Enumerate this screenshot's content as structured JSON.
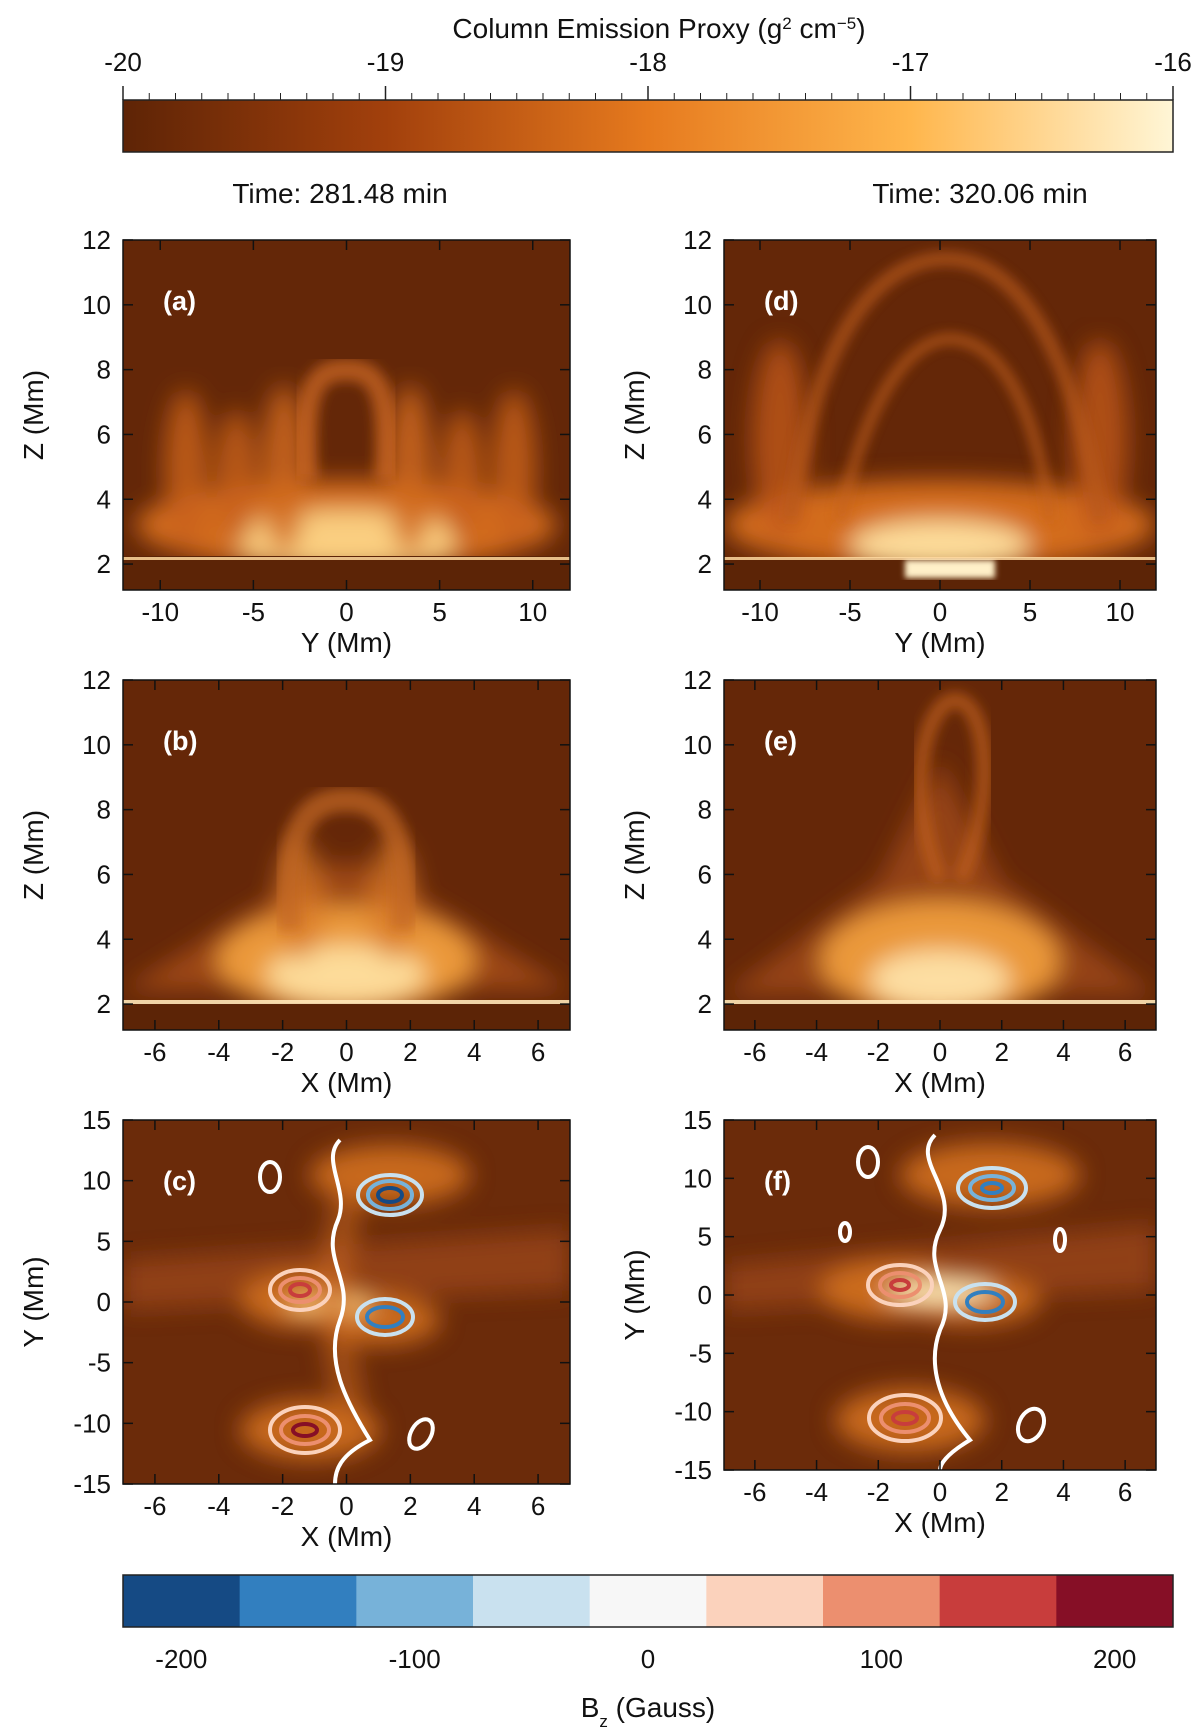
{
  "top_colorbar": {
    "title_main": "Column Emission Proxy (g",
    "title_sup1": "2",
    "title_mid": " cm",
    "title_sup2": "−5",
    "title_end": ")",
    "ticks": [
      "-20",
      "-19",
      "-18",
      "-17",
      "-16"
    ],
    "range": [
      -20,
      -16
    ],
    "colors": [
      "#5e2406",
      "#a2400c",
      "#e67a1e",
      "#ffb64c",
      "#fff6d6"
    ]
  },
  "bottom_colorbar": {
    "title_main": "B",
    "title_sub": "z",
    "title_end": " (Gauss)",
    "ticks": [
      "-200",
      "-100",
      "0",
      "100",
      "200"
    ],
    "bins": [
      "#154a84",
      "#327fbf",
      "#77b2d9",
      "#c9e1ef",
      "#f7f7f7",
      "#fbd2bc",
      "#ec8f6f",
      "#c83d3c",
      "#860f26"
    ]
  },
  "column_times": [
    "Time: 281.48 min",
    "Time: 320.06 min"
  ],
  "chart_data": [
    {
      "type": "heatmap",
      "panel": "(a)",
      "xlabel": "Y (Mm)",
      "ylabel": "Z (Mm)",
      "xlim": [
        -12,
        12
      ],
      "ylim": [
        1.2,
        12
      ],
      "xticks": [
        "-10",
        "-5",
        "0",
        "5",
        "10"
      ],
      "yticks": [
        "2",
        "4",
        "6",
        "8",
        "10",
        "12"
      ]
    },
    {
      "type": "heatmap",
      "panel": "(b)",
      "xlabel": "X (Mm)",
      "ylabel": "Z (Mm)",
      "xlim": [
        -7,
        7
      ],
      "ylim": [
        1.2,
        12
      ],
      "xticks": [
        "-6",
        "-4",
        "-2",
        "0",
        "2",
        "4",
        "6"
      ],
      "yticks": [
        "2",
        "4",
        "6",
        "8",
        "10",
        "12"
      ]
    },
    {
      "type": "heatmap",
      "panel": "(c)",
      "xlabel": "X (Mm)",
      "ylabel": "Y (Mm)",
      "xlim": [
        -7,
        7
      ],
      "ylim": [
        -15,
        15
      ],
      "xticks": [
        "-6",
        "-4",
        "-2",
        "0",
        "2",
        "4",
        "6"
      ],
      "yticks": [
        "-15",
        "-10",
        "-5",
        "0",
        "5",
        "10",
        "15"
      ]
    },
    {
      "type": "heatmap",
      "panel": "(d)",
      "xlabel": "Y (Mm)",
      "ylabel": "Z (Mm)",
      "xlim": [
        -12,
        12
      ],
      "ylim": [
        1.2,
        12
      ],
      "xticks": [
        "-10",
        "-5",
        "0",
        "5",
        "10"
      ],
      "yticks": [
        "2",
        "4",
        "6",
        "8",
        "10",
        "12"
      ]
    },
    {
      "type": "heatmap",
      "panel": "(e)",
      "xlabel": "X (Mm)",
      "ylabel": "Z (Mm)",
      "xlim": [
        -7,
        7
      ],
      "ylim": [
        1.2,
        12
      ],
      "xticks": [
        "-6",
        "-4",
        "-2",
        "0",
        "2",
        "4",
        "6"
      ],
      "yticks": [
        "2",
        "4",
        "6",
        "8",
        "10",
        "12"
      ]
    },
    {
      "type": "heatmap",
      "panel": "(f)",
      "xlabel": "X (Mm)",
      "ylabel": "Y (Mm)",
      "xlim": [
        -7,
        7
      ],
      "ylim": [
        -15,
        15
      ],
      "xticks": [
        "-6",
        "-4",
        "-2",
        "0",
        "2",
        "4",
        "6"
      ],
      "yticks": [
        "-15",
        "-10",
        "-5",
        "0",
        "5",
        "10",
        "15"
      ]
    }
  ]
}
